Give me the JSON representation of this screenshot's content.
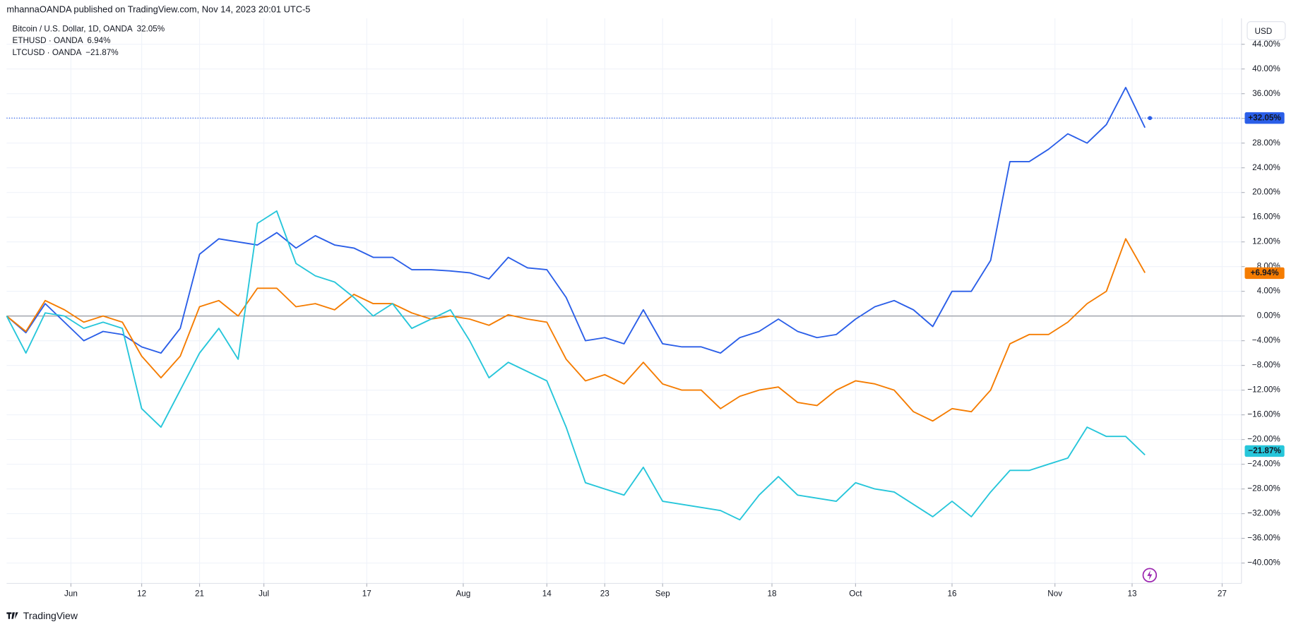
{
  "header": {
    "attribution": "mhannaOANDA published on TradingView.com, Nov 14, 2023 20:01 UTC-5",
    "currency_button": "USD",
    "footer_logo": "TradingView"
  },
  "chart_data": {
    "type": "line",
    "x": [
      "2023-05-22",
      "2023-05-25",
      "2023-05-28",
      "2023-05-31",
      "2023-06-03",
      "2023-06-06",
      "2023-06-09",
      "2023-06-12",
      "2023-06-15",
      "2023-06-18",
      "2023-06-21",
      "2023-06-24",
      "2023-06-27",
      "2023-06-30",
      "2023-07-03",
      "2023-07-06",
      "2023-07-09",
      "2023-07-12",
      "2023-07-15",
      "2023-07-18",
      "2023-07-21",
      "2023-07-24",
      "2023-07-27",
      "2023-07-30",
      "2023-08-02",
      "2023-08-05",
      "2023-08-08",
      "2023-08-11",
      "2023-08-14",
      "2023-08-17",
      "2023-08-20",
      "2023-08-23",
      "2023-08-26",
      "2023-08-29",
      "2023-09-01",
      "2023-09-04",
      "2023-09-07",
      "2023-09-10",
      "2023-09-13",
      "2023-09-16",
      "2023-09-19",
      "2023-09-22",
      "2023-09-25",
      "2023-09-28",
      "2023-10-01",
      "2023-10-04",
      "2023-10-07",
      "2023-10-10",
      "2023-10-13",
      "2023-10-16",
      "2023-10-19",
      "2023-10-22",
      "2023-10-25",
      "2023-10-28",
      "2023-10-31",
      "2023-11-03",
      "2023-11-06",
      "2023-11-09",
      "2023-11-12",
      "2023-11-15"
    ],
    "series": [
      {
        "name": "Bitcoin / U.S. Dollar, 1D, OANDA",
        "color": "#2a5ee8",
        "change_label": "32.05%",
        "last_value": 32.05,
        "last_label": "+32.05%",
        "values": [
          0,
          -2.7,
          2,
          -1,
          -4,
          -2.5,
          -3,
          -5,
          -6,
          -2,
          10,
          12.5,
          12,
          11.5,
          13.5,
          11,
          13,
          11.5,
          11,
          9.5,
          9.5,
          7.5,
          7.5,
          7.3,
          7,
          6,
          9.5,
          7.8,
          7.5,
          3,
          -4,
          -3.5,
          -4.5,
          1,
          -4.5,
          -5,
          -5,
          -6,
          -3.5,
          -2.5,
          -0.5,
          -2.5,
          -3.5,
          -3,
          -0.5,
          1.5,
          2.5,
          1,
          -1.7,
          4,
          4,
          9,
          25,
          25,
          27,
          29.5,
          28,
          31,
          37,
          30.5
        ]
      },
      {
        "name": "ETHUSD · OANDA",
        "color": "#f57c00",
        "change_label": "6.94%",
        "last_value": 6.94,
        "last_label": "+6.94%",
        "values": [
          0,
          -2.5,
          2.5,
          1,
          -1,
          0,
          -1,
          -6.5,
          -10,
          -6.5,
          1.5,
          2.5,
          0,
          4.5,
          4.5,
          1.5,
          2,
          1,
          3.5,
          2,
          2,
          0.5,
          -0.5,
          0,
          -0.5,
          -1.5,
          0.2,
          -0.5,
          -1,
          -7,
          -10.5,
          -9.5,
          -11,
          -7.5,
          -11,
          -12,
          -12,
          -15,
          -13,
          -12,
          -11.5,
          -14,
          -14.5,
          -12,
          -10.5,
          -11,
          -12,
          -15.5,
          -17,
          -15,
          -15.5,
          -12,
          -4.5,
          -3,
          -3,
          -1,
          2,
          4,
          12.5,
          7
        ]
      },
      {
        "name": "LTCUSD · OANDA",
        "color": "#26c6da",
        "change_label": "−21.87%",
        "last_value": -21.87,
        "last_label": "−21.87%",
        "values": [
          0,
          -6,
          0.5,
          0,
          -2,
          -1,
          -2,
          -15,
          -18,
          -12,
          -6,
          -2,
          -7,
          15,
          17,
          8.5,
          6.5,
          5.5,
          3,
          0,
          2,
          -2,
          -0.5,
          1,
          -4,
          -10,
          -7.5,
          -9,
          -10.5,
          -18,
          -27,
          -28,
          -29,
          -24.5,
          -30,
          -30.5,
          -31,
          -31.5,
          -33,
          -29,
          -26,
          -29,
          -29.5,
          -30,
          -27,
          -28,
          -28.5,
          -30.5,
          -32.5,
          -30,
          -32.5,
          -28.5,
          -25,
          -25,
          -24,
          -23,
          -18,
          -19.5,
          -19.5,
          -22.5
        ]
      }
    ],
    "xlim": [
      "2023-05-22",
      "2023-11-30"
    ],
    "ylim": [
      -43.3,
      48.2
    ],
    "xticks": [
      {
        "value": "2023-06-01",
        "label": "Jun"
      },
      {
        "value": "2023-06-12",
        "label": "12"
      },
      {
        "value": "2023-06-21",
        "label": "21"
      },
      {
        "value": "2023-07-01",
        "label": "Jul"
      },
      {
        "value": "2023-07-17",
        "label": "17"
      },
      {
        "value": "2023-08-01",
        "label": "Aug"
      },
      {
        "value": "2023-08-14",
        "label": "14"
      },
      {
        "value": "2023-08-23",
        "label": "23"
      },
      {
        "value": "2023-09-01",
        "label": "Sep"
      },
      {
        "value": "2023-09-18",
        "label": "18"
      },
      {
        "value": "2023-10-01",
        "label": "Oct"
      },
      {
        "value": "2023-10-16",
        "label": "16"
      },
      {
        "value": "2023-11-01",
        "label": "Nov"
      },
      {
        "value": "2023-11-13",
        "label": "13"
      },
      {
        "value": "2023-11-27",
        "label": "27"
      }
    ],
    "yticks": [
      {
        "value": 44,
        "label": "44.00%"
      },
      {
        "value": 40,
        "label": "40.00%"
      },
      {
        "value": 36,
        "label": "36.00%"
      },
      {
        "value": 32,
        "label": "32.00%"
      },
      {
        "value": 28,
        "label": "28.00%"
      },
      {
        "value": 24,
        "label": "24.00%"
      },
      {
        "value": 20,
        "label": "20.00%"
      },
      {
        "value": 16,
        "label": "16.00%"
      },
      {
        "value": 12,
        "label": "12.00%"
      },
      {
        "value": 8,
        "label": "8.00%"
      },
      {
        "value": 4,
        "label": "4.00%"
      },
      {
        "value": 0,
        "label": "0.00%"
      },
      {
        "value": -4,
        "label": "−4.00%"
      },
      {
        "value": -8,
        "label": "−8.00%"
      },
      {
        "value": -12,
        "label": "−12.00%"
      },
      {
        "value": -16,
        "label": "−16.00%"
      },
      {
        "value": -20,
        "label": "−20.00%"
      },
      {
        "value": -24,
        "label": "−24.00%"
      },
      {
        "value": -28,
        "label": "−28.00%"
      },
      {
        "value": -32,
        "label": "−32.00%"
      },
      {
        "value": -36,
        "label": "−36.00%"
      },
      {
        "value": -40,
        "label": "−40.00%"
      }
    ],
    "grid": true
  }
}
